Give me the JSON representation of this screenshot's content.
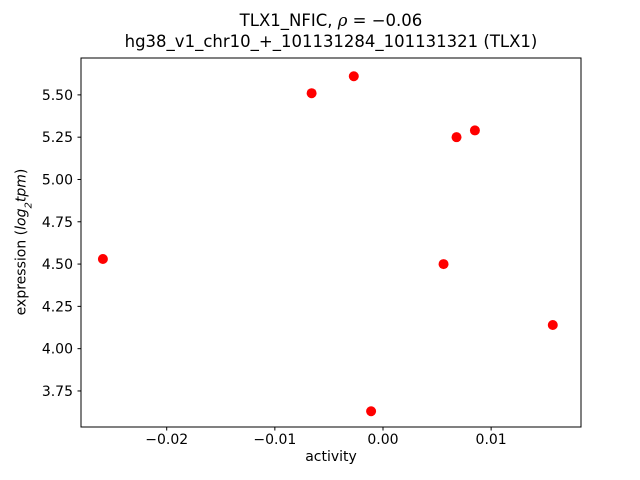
{
  "chart_data": {
    "type": "scatter",
    "title": "TLX1_NFIC, ρ = −0.06",
    "title_parts": {
      "prefix": "TLX1_NFIC, ",
      "rho": "ρ",
      "suffix": " = −0.06"
    },
    "subtitle": "hg38_v1_chr10_+_101131284_101131321 (TLX1)",
    "rho": -0.06,
    "xlabel": "activity",
    "ylabel": "expression (log2tpm)",
    "ylabel_parts": {
      "pre": "expression (",
      "log": "log",
      "sub": "2",
      "tpm": "tpm",
      "post": ")"
    },
    "marker_color": "#ff0000",
    "marker_diameter_px": 10,
    "grid": false,
    "legend": null,
    "xlim": [
      -0.027925,
      0.01831
    ],
    "ylim": [
      3.537,
      5.718
    ],
    "x_ticks": [
      {
        "value": -0.02,
        "label": "−0.02"
      },
      {
        "value": -0.01,
        "label": "−0.01"
      },
      {
        "value": 0.0,
        "label": "0.00"
      },
      {
        "value": 0.01,
        "label": "0.01"
      }
    ],
    "y_ticks": [
      {
        "value": 3.75,
        "label": "3.75"
      },
      {
        "value": 4.0,
        "label": "4.00"
      },
      {
        "value": 4.25,
        "label": "4.25"
      },
      {
        "value": 4.5,
        "label": "4.50"
      },
      {
        "value": 4.75,
        "label": "4.75"
      },
      {
        "value": 5.0,
        "label": "5.00"
      },
      {
        "value": 5.25,
        "label": "5.25"
      },
      {
        "value": 5.5,
        "label": "5.50"
      }
    ],
    "points": [
      {
        "x": -0.0259,
        "y": 4.53
      },
      {
        "x": -0.0066,
        "y": 5.51
      },
      {
        "x": -0.0027,
        "y": 5.61
      },
      {
        "x": -0.0011,
        "y": 3.63
      },
      {
        "x": 0.0056,
        "y": 4.5
      },
      {
        "x": 0.0068,
        "y": 5.25
      },
      {
        "x": 0.0085,
        "y": 5.29
      },
      {
        "x": 0.0157,
        "y": 4.14
      }
    ]
  }
}
